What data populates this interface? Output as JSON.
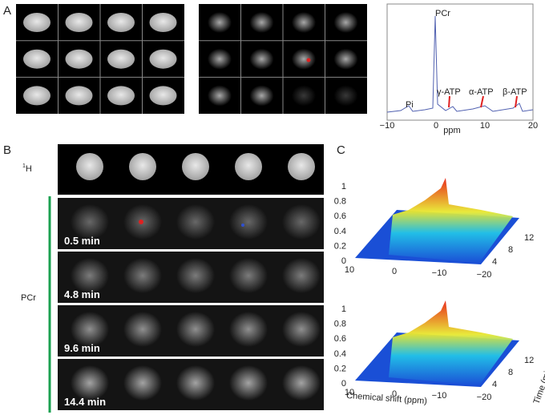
{
  "panel_a": {
    "label": "A",
    "spectrum": {
      "peak_labels": {
        "pcr": "PCr",
        "pi": "Pi",
        "gamma_atp": "γ-ATP",
        "alpha_atp": "α-ATP",
        "beta_atp": "β-ATP"
      },
      "x_ticks": [
        "−10",
        "0",
        "10",
        "20"
      ],
      "x_label": "ppm"
    }
  },
  "panel_b": {
    "label": "B",
    "proton_superscript": "1",
    "proton_label": "H",
    "pcr_label": "PCr",
    "rows": [
      "0.5 min",
      "4.8 min",
      "9.6 min",
      "14.4 min"
    ]
  },
  "panel_c": {
    "label": "C",
    "plots": [
      {
        "z_ticks": [
          "1",
          "0.8",
          "0.6",
          "0.4",
          "0.2",
          "0"
        ],
        "x_ticks": [
          "10",
          "0",
          "−10",
          "−20"
        ],
        "time_ticks": [
          "4",
          "8",
          "12"
        ]
      },
      {
        "z_ticks": [
          "1",
          "0.8",
          "0.6",
          "0.4",
          "0.2",
          "0"
        ],
        "x_ticks": [
          "10",
          "0",
          "−10",
          "−20"
        ],
        "time_ticks": [
          "4",
          "8",
          "12"
        ],
        "x_label": "Chemical shift (ppm)",
        "time_label": "Time (min)"
      }
    ]
  }
}
